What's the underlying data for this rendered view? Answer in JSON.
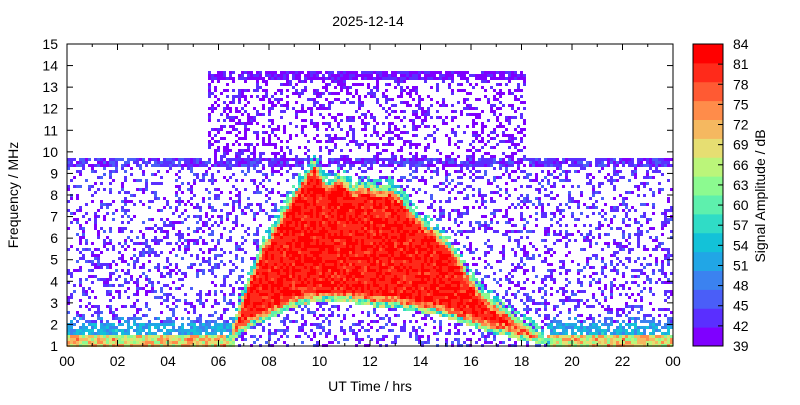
{
  "chart_data": {
    "type": "heatmap",
    "title": "2025-12-14",
    "xlabel": "UT Time / hrs",
    "ylabel": "Frequency / MHz",
    "xlim": [
      0,
      24
    ],
    "ylim": [
      1,
      15
    ],
    "x_ticks": [
      "00",
      "02",
      "04",
      "06",
      "08",
      "10",
      "12",
      "14",
      "16",
      "18",
      "20",
      "22",
      "00"
    ],
    "y_ticks": [
      "1",
      "2",
      "3",
      "4",
      "5",
      "6",
      "7",
      "8",
      "9",
      "10",
      "11",
      "12",
      "13",
      "14",
      "15"
    ],
    "colorbar": {
      "label": "Signal Amplitude / dB",
      "range": [
        39,
        84
      ],
      "ticks": [
        "39",
        "42",
        "45",
        "48",
        "51",
        "54",
        "57",
        "60",
        "63",
        "66",
        "69",
        "72",
        "75",
        "78",
        "81",
        "84"
      ],
      "colors": [
        "#7f00ff",
        "#5a2fff",
        "#4a5ef8",
        "#3b82f0",
        "#21a6e6",
        "#13c2d8",
        "#30dcc6",
        "#5ef0ad",
        "#8cfa90",
        "#bbf57a",
        "#e6de72",
        "#f5b860",
        "#ff8c4a",
        "#ff5a33",
        "#ff2a1a",
        "#ff0000"
      ]
    },
    "background_bands": [
      {
        "t_start": 0,
        "t_end": 24,
        "f_low": 1,
        "f_high": 9.7,
        "value": 42
      },
      {
        "t_start": 5.6,
        "t_end": 18.2,
        "f_low": 9.7,
        "f_high": 13.8,
        "value": 40
      }
    ],
    "low_band_value": 68,
    "envelope": [
      {
        "t": 6.3,
        "f_low": 1.0,
        "f_high": 1.0
      },
      {
        "t": 6.8,
        "f_low": 1.5,
        "f_high": 2.8
      },
      {
        "t": 7.3,
        "f_low": 1.9,
        "f_high": 4.5
      },
      {
        "t": 7.8,
        "f_low": 2.1,
        "f_high": 5.8
      },
      {
        "t": 8.3,
        "f_low": 2.4,
        "f_high": 6.8
      },
      {
        "t": 8.8,
        "f_low": 2.7,
        "f_high": 7.8
      },
      {
        "t": 9.3,
        "f_low": 2.9,
        "f_high": 8.8
      },
      {
        "t": 9.8,
        "f_low": 3.0,
        "f_high": 9.6
      },
      {
        "t": 10.3,
        "f_low": 3.0,
        "f_high": 8.6
      },
      {
        "t": 10.8,
        "f_low": 3.0,
        "f_high": 9.0
      },
      {
        "t": 11.3,
        "f_low": 3.0,
        "f_high": 8.4
      },
      {
        "t": 11.8,
        "f_low": 2.9,
        "f_high": 8.6
      },
      {
        "t": 12.3,
        "f_low": 2.8,
        "f_high": 8.4
      },
      {
        "t": 12.8,
        "f_low": 2.8,
        "f_high": 8.5
      },
      {
        "t": 13.3,
        "f_low": 2.7,
        "f_high": 7.9
      },
      {
        "t": 13.8,
        "f_low": 2.6,
        "f_high": 7.2
      },
      {
        "t": 14.3,
        "f_low": 2.5,
        "f_high": 6.7
      },
      {
        "t": 14.8,
        "f_low": 2.4,
        "f_high": 6.2
      },
      {
        "t": 15.3,
        "f_low": 2.2,
        "f_high": 5.6
      },
      {
        "t": 15.8,
        "f_low": 2.0,
        "f_high": 4.6
      },
      {
        "t": 16.3,
        "f_low": 1.8,
        "f_high": 3.7
      },
      {
        "t": 16.8,
        "f_low": 1.6,
        "f_high": 3.2
      },
      {
        "t": 17.3,
        "f_low": 1.5,
        "f_high": 2.8
      },
      {
        "t": 17.8,
        "f_low": 1.3,
        "f_high": 2.3
      },
      {
        "t": 18.3,
        "f_low": 1.2,
        "f_high": 2.0
      },
      {
        "t": 18.8,
        "f_low": 1.1,
        "f_high": 1.5
      },
      {
        "t": 19.1,
        "f_low": 1.0,
        "f_high": 1.0
      }
    ]
  }
}
